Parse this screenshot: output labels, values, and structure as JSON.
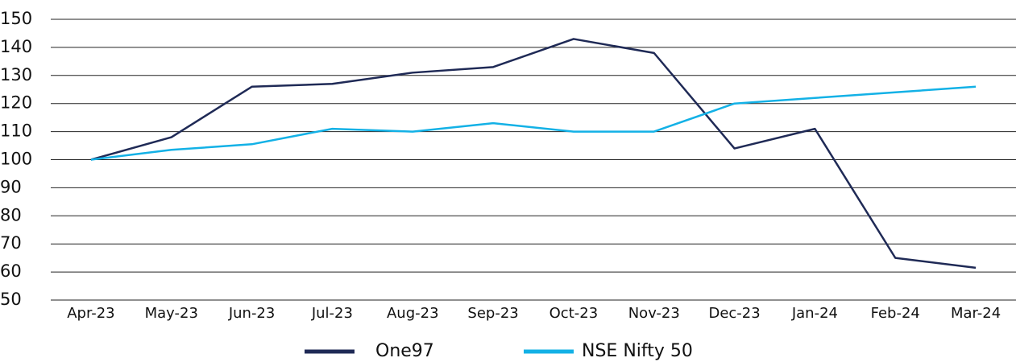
{
  "chart_data": {
    "type": "line",
    "categories": [
      "Apr-23",
      "May-23",
      "Jun-23",
      "Jul-23",
      "Aug-23",
      "Sep-23",
      "Oct-23",
      "Nov-23",
      "Dec-23",
      "Jan-24",
      "Feb-24",
      "Mar-24"
    ],
    "series": [
      {
        "name": "One97",
        "color": "#1f2a56",
        "values": [
          100,
          108,
          126,
          127,
          131,
          133,
          143,
          138,
          104,
          111,
          65,
          61.5
        ]
      },
      {
        "name": "NSE Nifty 50",
        "color": "#13b1e6",
        "values": [
          100,
          103.5,
          105.5,
          111,
          110,
          113,
          110,
          110,
          120,
          122,
          124,
          126
        ]
      }
    ],
    "ylim": [
      50,
      150
    ],
    "yticks": [
      50,
      60,
      70,
      80,
      90,
      100,
      110,
      120,
      130,
      140,
      150
    ],
    "grid": true,
    "legend": "bottom"
  }
}
